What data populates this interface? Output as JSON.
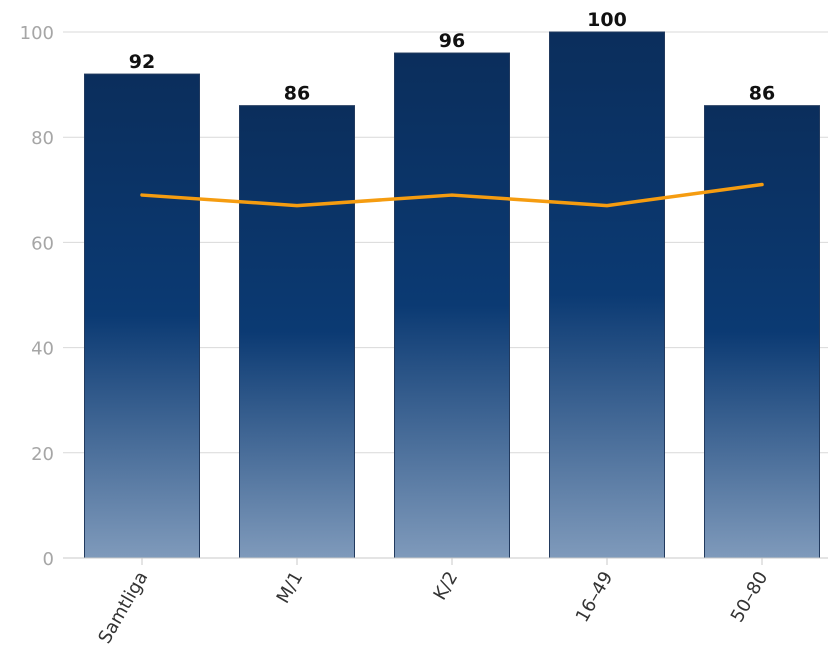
{
  "chart_data": {
    "type": "bar",
    "categories": [
      "Samtliga",
      "M/1",
      "K/2",
      "16-49",
      "50-80"
    ],
    "x_tick_labels": [
      "Samtliga",
      "M/1",
      "K/2",
      "16–49",
      "50–80"
    ],
    "series": [
      {
        "values": [
          92,
          86,
          96,
          100,
          86
        ],
        "data_labels": [
          "92",
          "86",
          "96",
          "100",
          "86"
        ],
        "color": "#0b3a73"
      },
      {
        "type": "line",
        "values": [
          69,
          67,
          69,
          67,
          71
        ],
        "color": "#f59c10"
      }
    ],
    "title": "",
    "xlabel": "",
    "ylabel": "",
    "ylim": [
      0,
      100
    ],
    "yticks": [
      0,
      20,
      40,
      60,
      80,
      100
    ],
    "grid": true,
    "legend": "none",
    "colors": {
      "bar_top": "#0b2e5c",
      "bar_mid": "#0b3a73",
      "bar_bottom": "#7f9abb",
      "line": "#f59c10",
      "grid": "#d9d9d9",
      "tick": "#a6a6a6"
    }
  }
}
